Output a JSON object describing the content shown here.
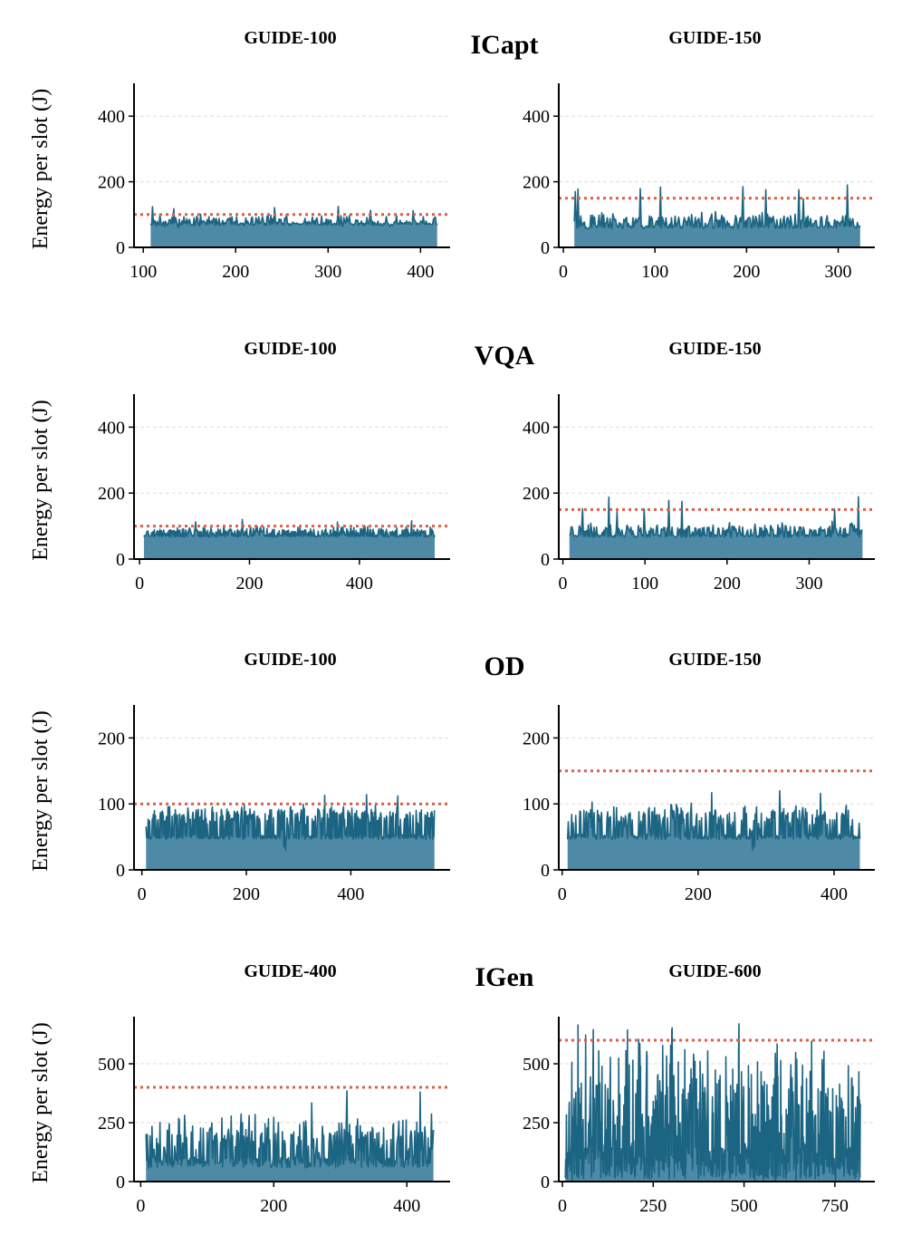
{
  "figure": {
    "ylabel": "Energy per slot (J)",
    "accent_line": "#1b6482",
    "accent_fill": "#2f7595",
    "budget_color": "#d9604a",
    "grid_color": "#dddddd"
  },
  "chart_data": [
    {
      "type": "area",
      "group": "ICapt",
      "title": "GUIDE-100",
      "x_range": [
        108,
        418
      ],
      "xlim": [
        90,
        432
      ],
      "ylim": [
        0,
        500
      ],
      "xticks": [
        100,
        200,
        300,
        400
      ],
      "yticks": [
        0,
        200,
        400
      ],
      "budget": 100,
      "mean": 82,
      "noise": 13,
      "low": 70,
      "seed": 11,
      "spikes": [
        [
          110,
          124
        ],
        [
          133,
          118
        ],
        [
          242,
          121
        ],
        [
          311,
          125
        ],
        [
          346,
          113
        ],
        [
          392,
          112
        ]
      ]
    },
    {
      "type": "area",
      "group": "ICapt",
      "title": "GUIDE-150",
      "x_range": [
        12,
        324
      ],
      "xlim": [
        -5,
        340
      ],
      "ylim": [
        0,
        500
      ],
      "xticks": [
        0,
        100,
        200,
        300
      ],
      "yticks": [
        0,
        200,
        400
      ],
      "budget": 150,
      "mean": 85,
      "noise": 15,
      "low": 62,
      "seed": 23,
      "spikes": [
        [
          13,
          170
        ],
        [
          16,
          178
        ],
        [
          84,
          179
        ],
        [
          106,
          184
        ],
        [
          196,
          185
        ],
        [
          221,
          176
        ],
        [
          257,
          176
        ],
        [
          262,
          148
        ],
        [
          310,
          190
        ]
      ]
    },
    {
      "type": "area",
      "group": "VQA",
      "title": "GUIDE-100",
      "x_range": [
        8,
        537
      ],
      "xlim": [
        -10,
        565
      ],
      "ylim": [
        0,
        500
      ],
      "xticks": [
        0,
        200,
        400
      ],
      "yticks": [
        0,
        200,
        400
      ],
      "budget": 100,
      "mean": 85,
      "noise": 10,
      "low": 70,
      "seed": 37,
      "spikes": [
        [
          102,
          113
        ],
        [
          187,
          120
        ],
        [
          360,
          112
        ],
        [
          495,
          116
        ]
      ]
    },
    {
      "type": "area",
      "group": "VQA",
      "title": "GUIDE-150",
      "x_range": [
        8,
        365
      ],
      "xlim": [
        -5,
        380
      ],
      "ylim": [
        0,
        500
      ],
      "xticks": [
        0,
        100,
        200,
        300
      ],
      "yticks": [
        0,
        200,
        400
      ],
      "budget": 150,
      "mean": 90,
      "noise": 13,
      "low": 70,
      "seed": 41,
      "spikes": [
        [
          24,
          153
        ],
        [
          56,
          188
        ],
        [
          66,
          144
        ],
        [
          99,
          152
        ],
        [
          129,
          178
        ],
        [
          145,
          175
        ],
        [
          331,
          151
        ],
        [
          360,
          189
        ]
      ]
    },
    {
      "type": "area",
      "group": "OD",
      "title": "GUIDE-100",
      "x_range": [
        8,
        560
      ],
      "xlim": [
        -15,
        590
      ],
      "ylim": [
        0,
        250
      ],
      "xticks": [
        0,
        200,
        400
      ],
      "yticks": [
        0,
        100,
        200
      ],
      "budget": 100,
      "mean": 82,
      "noise": 12,
      "low": 50,
      "seed": 53,
      "spikes": [
        [
          272,
          35
        ],
        [
          275,
          30
        ],
        [
          350,
          113
        ],
        [
          430,
          114
        ],
        [
          490,
          112
        ]
      ]
    },
    {
      "type": "area",
      "group": "OD",
      "title": "GUIDE-150",
      "x_range": [
        8,
        438
      ],
      "xlim": [
        -5,
        460
      ],
      "ylim": [
        0,
        250
      ],
      "xticks": [
        0,
        200,
        400
      ],
      "yticks": [
        0,
        100,
        200
      ],
      "budget": 150,
      "mean": 82,
      "noise": 13,
      "low": 50,
      "seed": 67,
      "spikes": [
        [
          220,
          117
        ],
        [
          280,
          30
        ],
        [
          283,
          35
        ],
        [
          320,
          120
        ],
        [
          380,
          116
        ]
      ]
    },
    {
      "type": "area",
      "group": "IGen",
      "title": "GUIDE-400",
      "x_range": [
        8,
        440
      ],
      "xlim": [
        -10,
        465
      ],
      "ylim": [
        0,
        700
      ],
      "xticks": [
        0,
        200,
        400
      ],
      "yticks": [
        0,
        250,
        500
      ],
      "budget": 400,
      "mean": 190,
      "noise": 75,
      "low": 80,
      "seed": 79,
      "spikes": [
        [
          310,
          385
        ],
        [
          420,
          380
        ]
      ]
    },
    {
      "type": "area",
      "group": "IGen",
      "title": "GUIDE-600",
      "x_range": [
        8,
        820
      ],
      "xlim": [
        -10,
        860
      ],
      "ylim": [
        0,
        700
      ],
      "xticks": [
        0,
        250,
        500,
        750
      ],
      "yticks": [
        0,
        250,
        500
      ],
      "budget": 600,
      "mean": 300,
      "noise": 230,
      "low": 80,
      "seed": 97,
      "spikes": [
        [
          100,
          555
        ],
        [
          400,
          555
        ],
        [
          720,
          553
        ]
      ]
    }
  ],
  "groups": [
    "ICapt",
    "VQA",
    "OD",
    "IGen"
  ]
}
